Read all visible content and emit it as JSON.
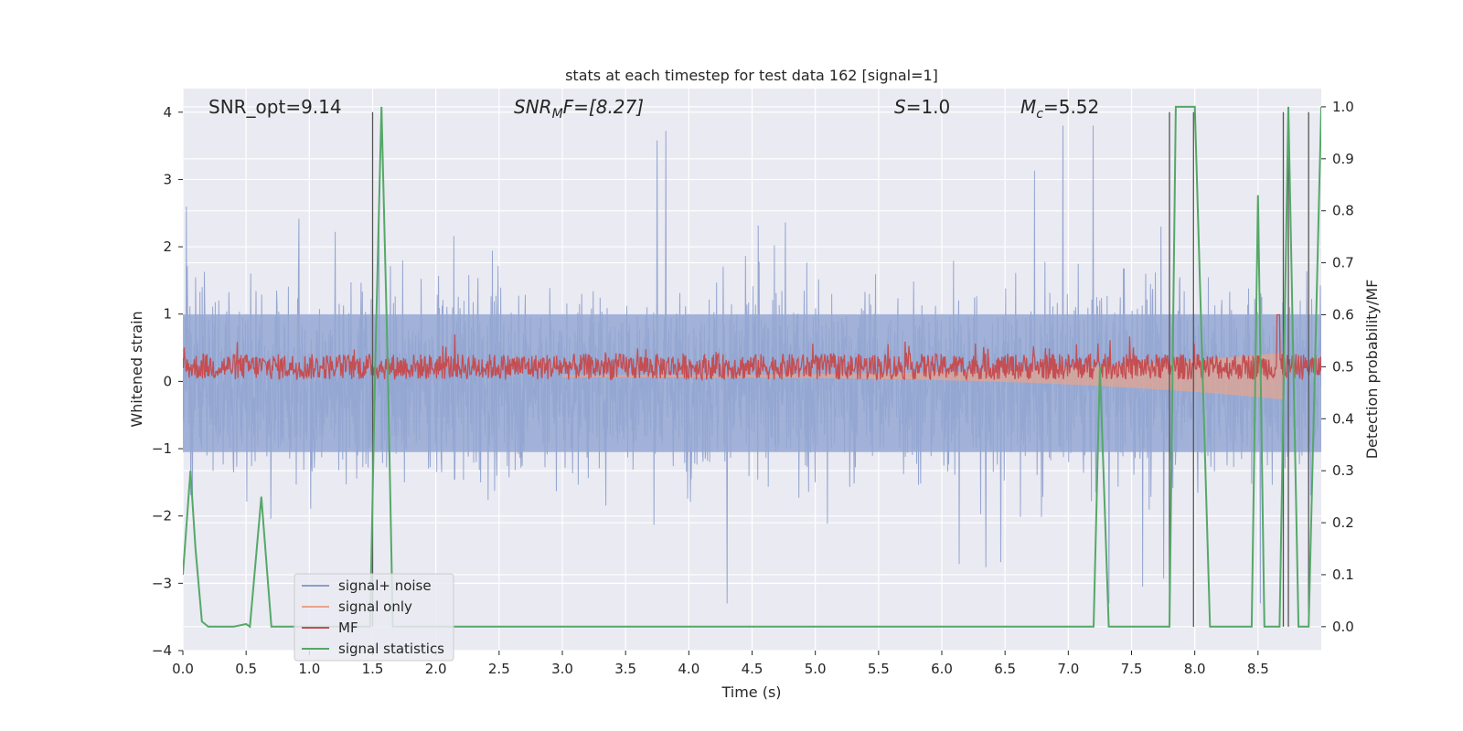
{
  "chart_data": {
    "type": "line",
    "title": "stats at each timestep for test data 162 [signal=1]",
    "xlabel": "Time (s)",
    "ylabel": "Whitened strain",
    "y2label": "Detection probability/MF",
    "xlim": [
      0.0,
      9.0
    ],
    "ylim": [
      -4.0,
      4.35
    ],
    "y2lim": [
      -0.046,
      1.035
    ],
    "xticks": [
      "0.0",
      "0.5",
      "1.0",
      "1.5",
      "2.0",
      "2.5",
      "3.0",
      "3.5",
      "4.0",
      "4.5",
      "5.0",
      "5.5",
      "6.0",
      "6.5",
      "7.0",
      "7.5",
      "8.0",
      "8.5"
    ],
    "yticks": [
      "4",
      "3",
      "2",
      "1",
      "0",
      "−1",
      "−2",
      "−3",
      "−4"
    ],
    "y2ticks": [
      "1.0",
      "0.9",
      "0.8",
      "0.7",
      "0.6",
      "0.5",
      "0.4",
      "0.3",
      "0.2",
      "0.1",
      "0.0"
    ],
    "grid": true,
    "legend": {
      "placement": "lower-left",
      "entries": [
        {
          "label": "signal+ noise",
          "color": "#8c9fcc"
        },
        {
          "label": "signal only",
          "color": "#e8a48c"
        },
        {
          "label": "MF",
          "color": "#c44e52"
        },
        {
          "label": "signal statistics",
          "color": "#55a868"
        }
      ]
    },
    "annotations": {
      "snr_opt": "SNR_opt=9.14",
      "snr_mf_base": "SNR",
      "snr_mf_sub": "M",
      "snr_mf_rest": "F=[8.27]",
      "s_sym": "S",
      "s_rest": "=1.0",
      "mc_sym": "M",
      "mc_sub": "c",
      "mc_rest": "=5.52"
    },
    "series": [
      {
        "name": "signal statistics",
        "axis": "right",
        "color": "#55a868",
        "x": [
          0.0,
          0.06,
          0.1,
          0.15,
          0.2,
          0.25,
          0.4,
          0.5,
          0.53,
          0.62,
          0.7,
          1.48,
          1.52,
          1.57,
          1.62,
          1.66,
          7.2,
          7.25,
          7.32,
          7.8,
          7.85,
          8.0,
          8.12,
          8.45,
          8.5,
          8.55,
          8.67,
          8.74,
          8.82,
          8.9,
          9.0
        ],
        "y": [
          0.1,
          0.3,
          0.15,
          0.01,
          0.0,
          0.0,
          0.0,
          0.005,
          0.0,
          0.25,
          0.0,
          0.0,
          0.5,
          1.0,
          0.5,
          0.0,
          0.0,
          0.5,
          0.0,
          0.0,
          1.0,
          1.0,
          0.0,
          0.0,
          0.83,
          0.0,
          0.0,
          1.0,
          0.0,
          0.0,
          1.0
        ]
      },
      {
        "name": "MF",
        "axis": "right",
        "color": "#c44e52",
        "x": [
          0.0,
          9.0
        ],
        "y": [
          0.5,
          0.5
        ]
      }
    ],
    "vlines": [
      1.5,
      7.8,
      7.99,
      8.7,
      8.74,
      8.9
    ]
  }
}
